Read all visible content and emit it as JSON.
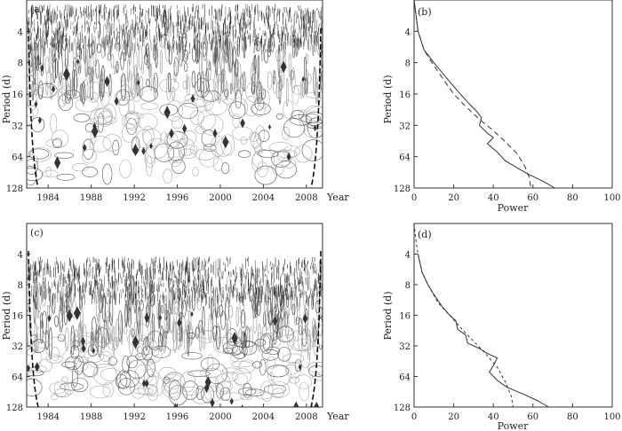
{
  "chart_data": [
    {
      "type": "heatmap",
      "panel_label": "(a)",
      "xlabel": "Year",
      "ylabel": "Period (d)",
      "x_ticks": [
        "1984",
        "1988",
        "1992",
        "1996",
        "2000",
        "2004",
        "2008"
      ],
      "y_ticks": [
        "4",
        "8",
        "16",
        "32",
        "64",
        "128"
      ],
      "xlim": [
        1982,
        2009.5
      ],
      "ylim_period_log2": [
        2,
        128
      ]
    },
    {
      "type": "line",
      "panel_label": "(b)",
      "xlabel": "Power",
      "ylabel": "Period (d)",
      "x_ticks": [
        "0",
        "20",
        "40",
        "60",
        "80",
        "100"
      ],
      "y_ticks": [
        "4",
        "8",
        "16",
        "32",
        "64",
        "128"
      ],
      "xlim": [
        0,
        100
      ],
      "ylim_period_log2": [
        2,
        128
      ],
      "series": [
        {
          "style": "solid",
          "points": [
            [
              0,
              2
            ],
            [
              2,
              4
            ],
            [
              5,
              6
            ],
            [
              10,
              8
            ],
            [
              16,
              11
            ],
            [
              22,
              15
            ],
            [
              28,
              20
            ],
            [
              32,
              24
            ],
            [
              34,
              27
            ],
            [
              33,
              32
            ],
            [
              37,
              38
            ],
            [
              40,
              42
            ],
            [
              37,
              48
            ],
            [
              42,
              58
            ],
            [
              46,
              70
            ],
            [
              52,
              82
            ],
            [
              58,
              95
            ],
            [
              65,
              110
            ],
            [
              71,
              128
            ]
          ]
        },
        {
          "style": "dashed",
          "points": [
            [
              0,
              2
            ],
            [
              2,
              4
            ],
            [
              5,
              6
            ],
            [
              9,
              8
            ],
            [
              14,
              11
            ],
            [
              20,
              16
            ],
            [
              26,
              21
            ],
            [
              33,
              28
            ],
            [
              40,
              36
            ],
            [
              46,
              46
            ],
            [
              52,
              60
            ],
            [
              56,
              80
            ],
            [
              58,
              100
            ],
            [
              59,
              128
            ]
          ]
        }
      ]
    },
    {
      "type": "heatmap",
      "panel_label": "(c)",
      "xlabel": "Year",
      "ylabel": "Period (d)",
      "x_ticks": [
        "1984",
        "1988",
        "1992",
        "1996",
        "2000",
        "2004",
        "2008"
      ],
      "y_ticks": [
        "4",
        "8",
        "16",
        "32",
        "64",
        "128"
      ],
      "xlim": [
        1982,
        2009.5
      ],
      "ylim_period_log2": [
        2,
        128
      ]
    },
    {
      "type": "line",
      "panel_label": "(d)",
      "xlabel": "Power",
      "ylabel": "Period (d)",
      "x_ticks": [
        "0",
        "20",
        "40",
        "60",
        "80",
        "100"
      ],
      "y_ticks": [
        "4",
        "8",
        "16",
        "32",
        "64",
        "128"
      ],
      "xlim": [
        0,
        100
      ],
      "ylim_period_log2": [
        2,
        128
      ],
      "series": [
        {
          "style": "solid",
          "points": [
            [
              2,
              4
            ],
            [
              4,
              6
            ],
            [
              7,
              8
            ],
            [
              10,
              10
            ],
            [
              14,
              13
            ],
            [
              18,
              16
            ],
            [
              21,
              18
            ],
            [
              22,
              22
            ],
            [
              26,
              25
            ],
            [
              27,
              30
            ],
            [
              33,
              34
            ],
            [
              37,
              38
            ],
            [
              42,
              42
            ],
            [
              40,
              50
            ],
            [
              38,
              58
            ],
            [
              42,
              70
            ],
            [
              47,
              82
            ],
            [
              55,
              95
            ],
            [
              62,
              110
            ],
            [
              68,
              128
            ]
          ]
        },
        {
          "style": "dashed",
          "points": [
            [
              0,
              2
            ],
            [
              1,
              3
            ],
            [
              2,
              4
            ],
            [
              4,
              6
            ],
            [
              7,
              8
            ],
            [
              12,
              12
            ],
            [
              18,
              16
            ],
            [
              26,
              24
            ],
            [
              35,
              36
            ],
            [
              42,
              52
            ],
            [
              46,
              72
            ],
            [
              49,
              100
            ],
            [
              50,
              128
            ]
          ]
        }
      ]
    }
  ]
}
